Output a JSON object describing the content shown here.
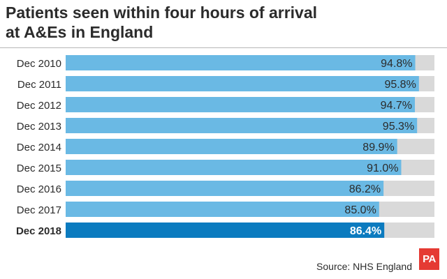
{
  "title_lines": [
    "Patients seen within four hours of arrival",
    "at A&Es in England"
  ],
  "source": "Source: NHS England",
  "logo_text": "PA",
  "colors": {
    "bar": "#6ab9e4",
    "bar_highlight": "#0b7bbf",
    "track": "#d9d9d9",
    "text": "#2b2b2b",
    "logo": "#e53a33"
  },
  "chart_data": {
    "type": "bar",
    "orientation": "horizontal",
    "title": "Patients seen within four hours of arrival at A&Es in England",
    "categories": [
      "Dec 2010",
      "Dec 2011",
      "Dec 2012",
      "Dec 2013",
      "Dec 2014",
      "Dec 2015",
      "Dec 2016",
      "Dec 2017",
      "Dec 2018"
    ],
    "values": [
      94.8,
      95.8,
      94.7,
      95.3,
      89.9,
      91.0,
      86.2,
      85.0,
      86.4
    ],
    "value_labels": [
      "94.8%",
      "95.8%",
      "94.7%",
      "95.3%",
      "89.9%",
      "91.0%",
      "86.2%",
      "85.0%",
      "86.4%"
    ],
    "highlight": "Dec 2018",
    "unit": "%",
    "xlim": [
      0,
      100
    ],
    "grid": false,
    "legend": "none"
  }
}
